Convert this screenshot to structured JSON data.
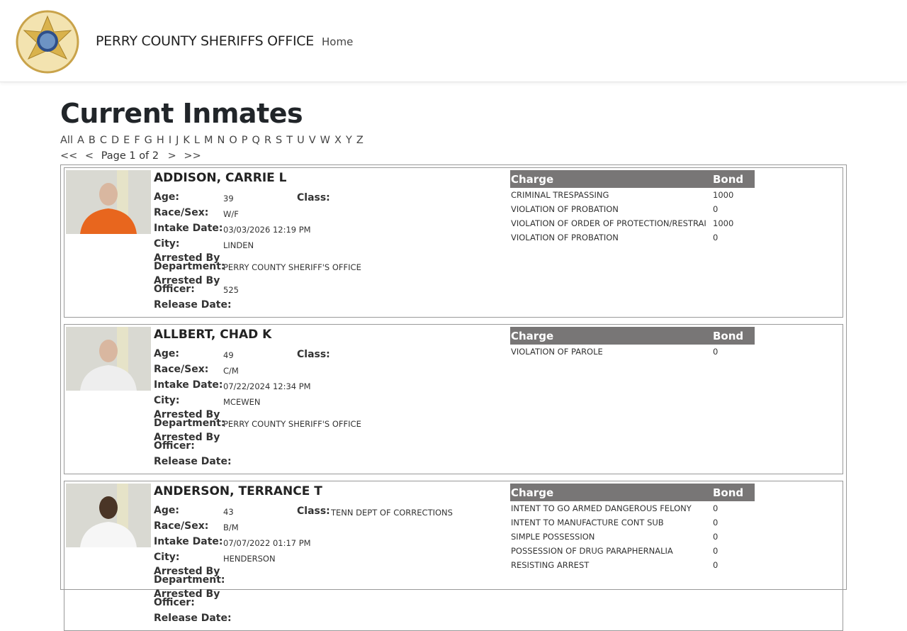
{
  "header": {
    "brand": "PERRY COUNTY SHERIFFS OFFICE",
    "home": "Home",
    "logo_text": "PERRY COUNTY SHERIFFS OFFICE"
  },
  "page": {
    "title": "Current Inmates",
    "letters": [
      "All",
      "A",
      "B",
      "C",
      "D",
      "E",
      "F",
      "G",
      "H",
      "I",
      "J",
      "K",
      "L",
      "M",
      "N",
      "O",
      "P",
      "Q",
      "R",
      "S",
      "T",
      "U",
      "V",
      "W",
      "X",
      "Y",
      "Z"
    ],
    "pager": {
      "first": "<<",
      "prev": "<",
      "status": "Page 1 of 2",
      "next": ">",
      "last": ">>"
    }
  },
  "labels": {
    "age": "Age:",
    "race_sex": "Race/Sex:",
    "intake": "Intake Date:",
    "city": "City:",
    "dept1": "Arrested By",
    "dept2": "Department:",
    "off1": "Arrested By",
    "off2": "Officer:",
    "release": "Release Date:",
    "class": "Class:",
    "charge": "Charge",
    "bond": "Bond"
  },
  "inmates": [
    {
      "name": "ADDISON, CARRIE L",
      "age": "39",
      "race_sex": "W/F",
      "intake": "03/03/2026 12:19 PM",
      "city": "LINDEN",
      "department": "PERRY COUNTY SHERIFF'S OFFICE",
      "officer": "525",
      "release": "",
      "class": "",
      "shirt": "#e8661e",
      "charges": [
        [
          "CRIMINAL TRESPASSING",
          "1000"
        ],
        [
          "VIOLATION OF PROBATION",
          "0"
        ],
        [
          "VIOLATION OF ORDER OF PROTECTION/RESTRAI",
          "1000"
        ],
        [
          "VIOLATION OF PROBATION",
          "0"
        ]
      ]
    },
    {
      "name": "ALLBERT, CHAD K",
      "age": "49",
      "race_sex": "C/M",
      "intake": "07/22/2024 12:34 PM",
      "city": "MCEWEN",
      "department": "PERRY COUNTY SHERIFF'S OFFICE",
      "officer": "",
      "release": "",
      "class": "",
      "shirt": "#eeeeee",
      "charges": [
        [
          "VIOLATION OF PAROLE",
          "0"
        ]
      ]
    },
    {
      "name": "ANDERSON, TERRANCE T",
      "age": "43",
      "race_sex": "B/M",
      "intake": "07/07/2022 01:17 PM",
      "city": "HENDERSON",
      "department": "",
      "officer": "",
      "release": "",
      "class": "TENN DEPT OF CORRECTIONS",
      "shirt": "#f6f6f6",
      "charges": [
        [
          "INTENT TO GO ARMED DANGEROUS FELONY",
          "0"
        ],
        [
          "INTENT TO MANUFACTURE CONT SUB",
          "0"
        ],
        [
          "SIMPLE POSSESSION",
          "0"
        ],
        [
          "POSSESSION OF DRUG PARAPHERNALIA",
          "0"
        ],
        [
          "RESISTING ARREST",
          "0"
        ]
      ]
    }
  ]
}
